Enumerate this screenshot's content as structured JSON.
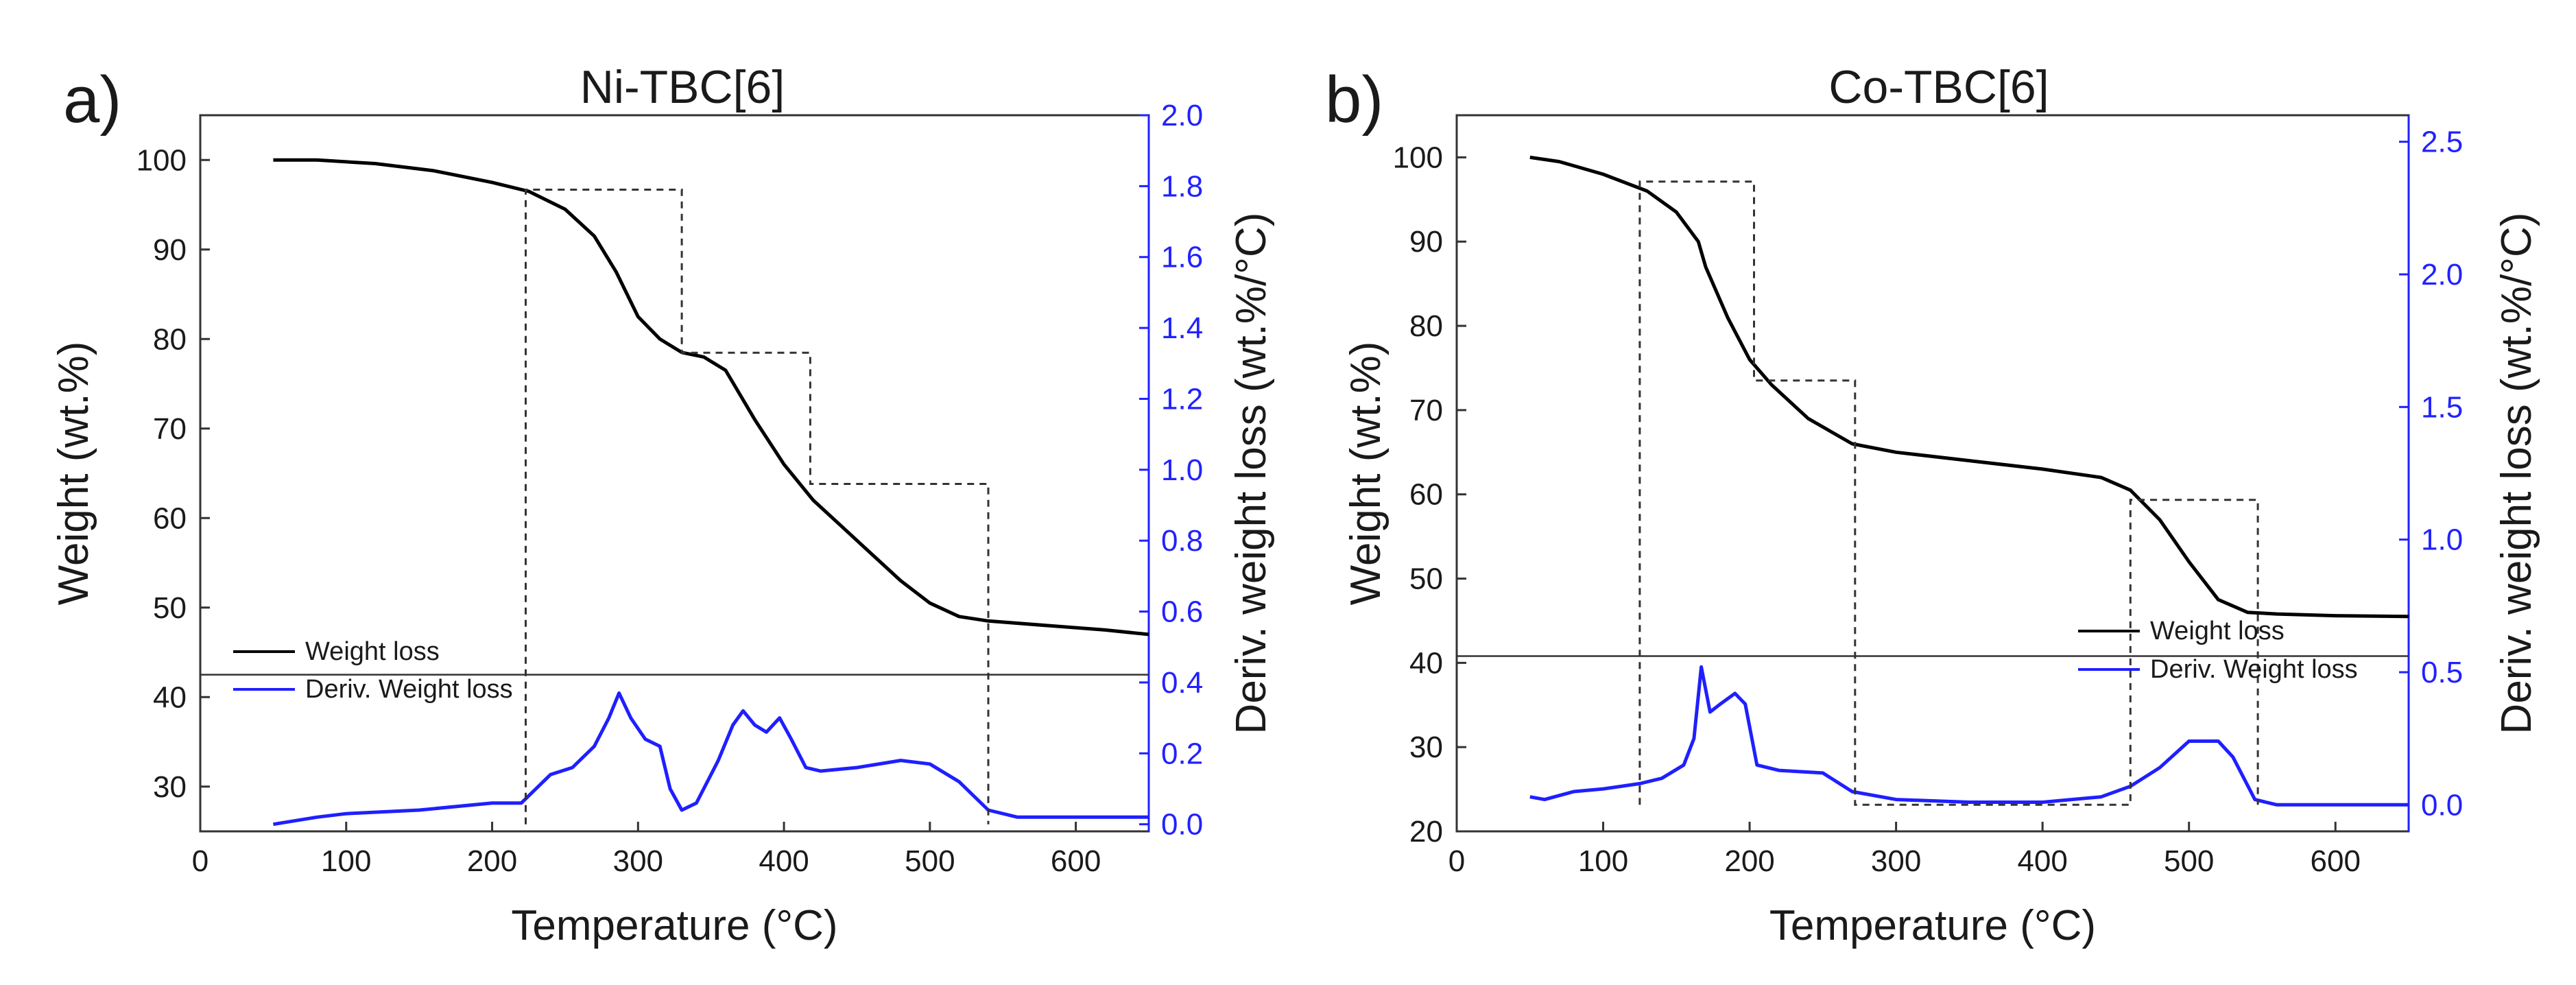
{
  "colors": {
    "weight": "#000000",
    "deriv": "#1f1fff",
    "right_axis": "#2121ff",
    "axes": "#333333"
  },
  "chart_data": [
    {
      "type": "line",
      "panel_label": "a)",
      "title": "Ni-TBC[6]",
      "xlabel": "Temperature (°C)",
      "ylabel_left": "Weight (wt.%)",
      "ylabel_right": "Deriv. weight loss (wt.%/°C)",
      "xlim": [
        0,
        650
      ],
      "ylim_left": [
        25,
        105
      ],
      "ylim_right": [
        -0.02,
        2.0
      ],
      "x_ticks": [
        "0",
        "100",
        "200",
        "300",
        "400",
        "500",
        "600"
      ],
      "y_ticks_left": [
        "30",
        "40",
        "50",
        "60",
        "70",
        "80",
        "90",
        "100"
      ],
      "y_ticks_right": [
        "0.0",
        "0.2",
        "0.4",
        "0.6",
        "0.8",
        "1.0",
        "1.2",
        "1.4",
        "1.6",
        "1.8",
        "2.0"
      ],
      "divider_weight": 42.5,
      "legend": [
        "Weight loss",
        "Deriv. Weight loss"
      ],
      "series": [
        {
          "name": "Weight loss",
          "axis": "left",
          "x": [
            50,
            80,
            120,
            160,
            200,
            225,
            250,
            270,
            285,
            300,
            315,
            330,
            345,
            360,
            380,
            400,
            420,
            440,
            460,
            480,
            500,
            520,
            540,
            580,
            620,
            650
          ],
          "y": [
            100,
            100,
            99.6,
            98.8,
            97.5,
            96.5,
            94.5,
            91.5,
            87.5,
            82.5,
            80,
            78.5,
            78,
            76.5,
            71,
            66,
            62,
            59,
            56,
            53,
            50.5,
            49,
            48.5,
            48,
            47.5,
            47
          ]
        },
        {
          "name": "Deriv. Weight loss",
          "axis": "right",
          "x": [
            50,
            80,
            100,
            150,
            200,
            220,
            230,
            240,
            255,
            270,
            280,
            287,
            295,
            305,
            315,
            322,
            330,
            340,
            355,
            365,
            372,
            380,
            388,
            397,
            405,
            415,
            425,
            450,
            480,
            500,
            520,
            540,
            560,
            600,
            650
          ],
          "y": [
            0.0,
            0.02,
            0.03,
            0.04,
            0.06,
            0.06,
            0.1,
            0.14,
            0.16,
            0.22,
            0.3,
            0.37,
            0.3,
            0.24,
            0.22,
            0.1,
            0.04,
            0.06,
            0.18,
            0.28,
            0.32,
            0.28,
            0.26,
            0.3,
            0.24,
            0.16,
            0.15,
            0.16,
            0.18,
            0.17,
            0.12,
            0.04,
            0.02,
            0.02,
            0.02
          ]
        },
        {
          "name": "step-boxes",
          "axis": "right",
          "x": [
            223,
            223,
            330,
            330,
            418,
            418,
            540,
            540
          ],
          "y": [
            0.0,
            1.79,
            1.79,
            1.33,
            1.33,
            0.96,
            0.96,
            0.0
          ]
        }
      ]
    },
    {
      "type": "line",
      "panel_label": "b)",
      "title": "Co-TBC[6]",
      "xlabel": "Temperature (°C)",
      "ylabel_left": "Weight (wt.%)",
      "ylabel_right": "Deriv. weight loss (wt.%/°C)",
      "xlim": [
        0,
        650
      ],
      "ylim_left": [
        20,
        105
      ],
      "ylim_right": [
        -0.1,
        2.6
      ],
      "x_ticks": [
        "0",
        "100",
        "200",
        "300",
        "400",
        "500",
        "600"
      ],
      "y_ticks_left": [
        "20",
        "30",
        "40",
        "50",
        "60",
        "70",
        "80",
        "90",
        "100"
      ],
      "y_ticks_right": [
        "0.0",
        "0.5",
        "1.0",
        "1.5",
        "2.0",
        "2.5"
      ],
      "divider_weight": 40.8,
      "legend": [
        "Weight loss",
        "Deriv. Weight loss"
      ],
      "series": [
        {
          "name": "Weight loss",
          "axis": "left",
          "x": [
            50,
            70,
            100,
            130,
            150,
            165,
            170,
            185,
            200,
            215,
            240,
            270,
            300,
            350,
            400,
            440,
            460,
            480,
            500,
            520,
            540,
            560,
            600,
            650
          ],
          "y": [
            100,
            99.5,
            98,
            96,
            93.5,
            90,
            87,
            81,
            76,
            73,
            69,
            66,
            65,
            64,
            63,
            62,
            60.5,
            57,
            52,
            47.5,
            46,
            45.8,
            45.6,
            45.5
          ]
        },
        {
          "name": "Deriv. Weight loss",
          "axis": "right",
          "x": [
            50,
            60,
            80,
            100,
            125,
            140,
            155,
            162,
            167,
            173,
            180,
            190,
            197,
            205,
            220,
            250,
            270,
            300,
            350,
            400,
            440,
            460,
            480,
            500,
            520,
            530,
            545,
            560,
            600,
            650
          ],
          "y": [
            0.03,
            0.02,
            0.05,
            0.06,
            0.08,
            0.1,
            0.15,
            0.25,
            0.52,
            0.35,
            0.38,
            0.42,
            0.38,
            0.15,
            0.13,
            0.12,
            0.05,
            0.02,
            0.01,
            0.01,
            0.03,
            0.07,
            0.14,
            0.24,
            0.24,
            0.18,
            0.02,
            0.0,
            0.0,
            0.0
          ]
        },
        {
          "name": "step-boxes",
          "axis": "right",
          "x": [
            125,
            125,
            203,
            203,
            272,
            272,
            460,
            460,
            547,
            547
          ],
          "y": [
            0.0,
            2.35,
            2.35,
            1.6,
            1.6,
            0.0,
            0.0,
            1.15,
            1.15,
            0.0
          ]
        }
      ]
    }
  ]
}
